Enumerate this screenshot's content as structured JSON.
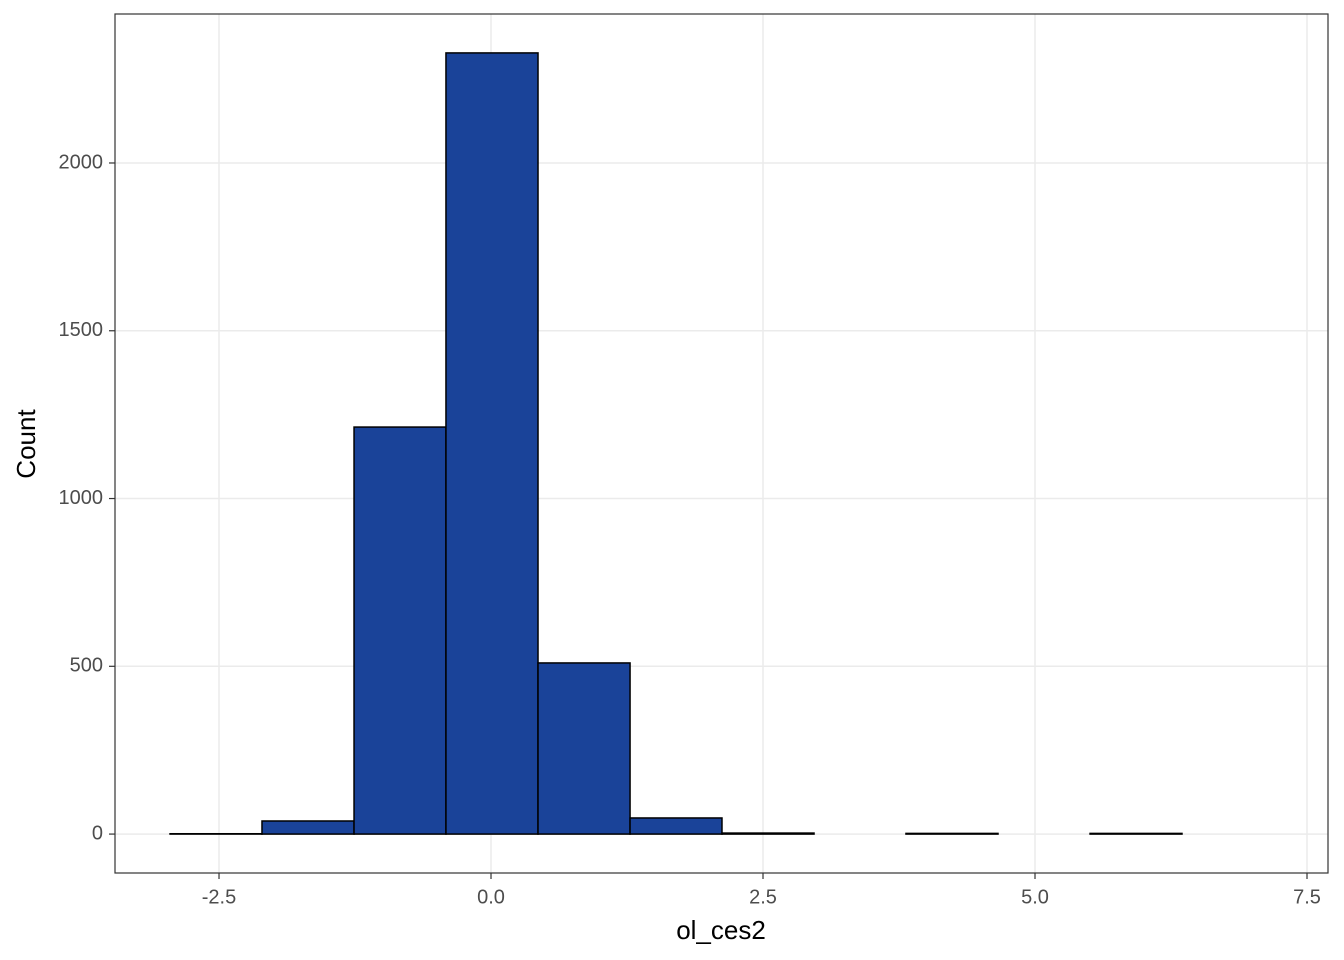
{
  "chart_data": {
    "type": "histogram",
    "x_label": "ol_ces2",
    "y_label": "Count",
    "bins": [
      -2.95,
      -2.105,
      -1.259,
      -0.414,
      0.432,
      1.278,
      2.123,
      2.969,
      3.814,
      4.66,
      5.506,
      6.351,
      7.197
    ],
    "values": [
      1,
      39,
      1213,
      2328,
      510,
      48,
      3,
      0,
      2,
      0,
      2,
      0
    ],
    "color": "#1a4399",
    "xlim": [
      -3.456,
      7.693
    ],
    "ylim": [
      -116,
      2444
    ],
    "xticks": [
      {
        "value": -2.5,
        "label": "-2.5"
      },
      {
        "value": 0,
        "label": "0.0"
      },
      2.5,
      {
        "value": 5,
        "label": "5.0"
      },
      7.5
    ],
    "yticks": [
      0,
      500,
      1000,
      1500,
      2000
    ],
    "grid": true
  }
}
